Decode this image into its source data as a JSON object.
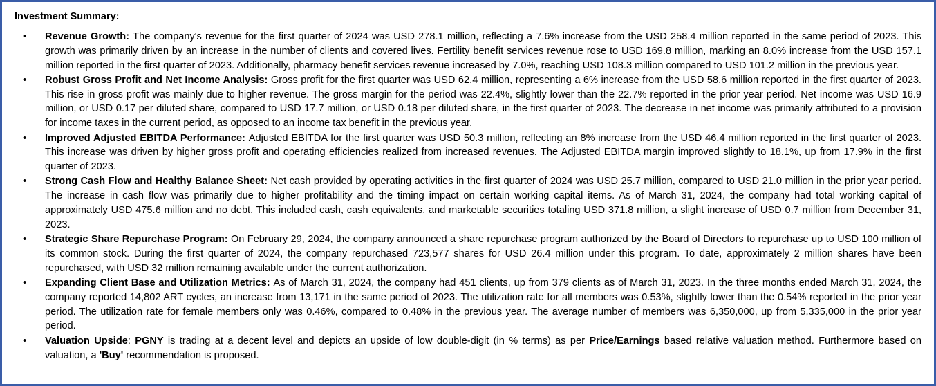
{
  "title": "Investment Summary:",
  "bullets": [
    {
      "segments": [
        {
          "text": "Revenue Growth: ",
          "bold": true
        },
        {
          "text": "The company's revenue for the first quarter of 2024 was USD 278.1 million, reflecting a 7.6% increase from the USD 258.4 million reported in the same period of 2023. This growth was primarily driven by an increase in the number of clients and covered lives. Fertility benefit services revenue rose to USD 169.8 million, marking an 8.0% increase from the USD 157.1 million reported in the first quarter of 2023. Additionally, pharmacy benefit services revenue increased by 7.0%, reaching USD 108.3 million compared to USD 101.2 million in the previous year.",
          "bold": false
        }
      ]
    },
    {
      "segments": [
        {
          "text": "Robust Gross Profit and Net Income Analysis: ",
          "bold": true
        },
        {
          "text": "Gross profit for the first quarter was USD 62.4 million, representing a 6% increase from the USD 58.6 million reported in the first quarter of 2023. This rise in gross profit was mainly due to higher revenue. The gross margin for the period was 22.4%, slightly lower than the 22.7% reported in the prior year period. Net income was USD 16.9 million, or USD 0.17 per diluted share, compared to USD 17.7 million, or USD 0.18 per diluted share, in the first quarter of 2023. The decrease in net income was primarily attributed to a provision for income taxes in the current period, as opposed to an income tax benefit in the previous year.",
          "bold": false
        }
      ]
    },
    {
      "segments": [
        {
          "text": "Improved Adjusted EBITDA Performance: ",
          "bold": true
        },
        {
          "text": "Adjusted EBITDA for the first quarter was USD 50.3 million, reflecting an 8% increase from the USD 46.4 million reported in the first quarter of 2023. This increase was driven by higher gross profit and operating efficiencies realized from increased revenues. The Adjusted EBITDA margin improved slightly to 18.1%, up from 17.9% in the first quarter of 2023.",
          "bold": false
        }
      ]
    },
    {
      "segments": [
        {
          "text": "Strong Cash Flow and Healthy Balance Sheet: ",
          "bold": true
        },
        {
          "text": "Net cash provided by operating activities in the first quarter of 2024 was USD 25.7 million, compared to USD 21.0 million in the prior year period. The increase in cash flow was primarily due to higher profitability and the timing impact on certain working capital items. As of March 31, 2024, the company had total working capital of approximately USD 475.6 million and no debt. This included cash, cash equivalents, and marketable securities totaling USD 371.8 million, a slight increase of USD 0.7 million from December 31, 2023.",
          "bold": false
        }
      ]
    },
    {
      "segments": [
        {
          "text": "Strategic Share Repurchase Program: ",
          "bold": true
        },
        {
          "text": "On February 29, 2024, the company announced a share repurchase program authorized by the Board of Directors to repurchase up to USD 100 million of its common stock. During the first quarter of 2024, the company repurchased 723,577 shares for USD 26.4 million under this program. To date, approximately 2 million shares have been repurchased, with USD 32 million remaining available under the current authorization.",
          "bold": false
        }
      ]
    },
    {
      "segments": [
        {
          "text": "Expanding Client Base and Utilization Metrics: ",
          "bold": true
        },
        {
          "text": "As of March 31, 2024, the company had 451 clients, up from 379 clients as of March 31, 2023. In the three months ended March 31, 2024, the company reported 14,802 ART cycles, an increase from 13,171 in the same period of 2023. The utilization rate for all members was 0.53%, slightly lower than the 0.54% reported in the prior year period. The utilization rate for female members only was 0.46%, compared to 0.48% in the previous year. The average number of members was 6,350,000, up from 5,335,000 in the prior year period.",
          "bold": false
        }
      ]
    },
    {
      "segments": [
        {
          "text": "Valuation Upside",
          "bold": true
        },
        {
          "text": ": ",
          "bold": false
        },
        {
          "text": "PGNY",
          "bold": true
        },
        {
          "text": " is trading at a decent level and depicts an upside of low double-digit (in % terms) as per ",
          "bold": false
        },
        {
          "text": "Price/Earnings",
          "bold": true
        },
        {
          "text": " based relative valuation method. Furthermore based on valuation, a ",
          "bold": false
        },
        {
          "text": "'Buy'",
          "bold": true
        },
        {
          "text": " recommendation is proposed.",
          "bold": false
        }
      ]
    }
  ]
}
